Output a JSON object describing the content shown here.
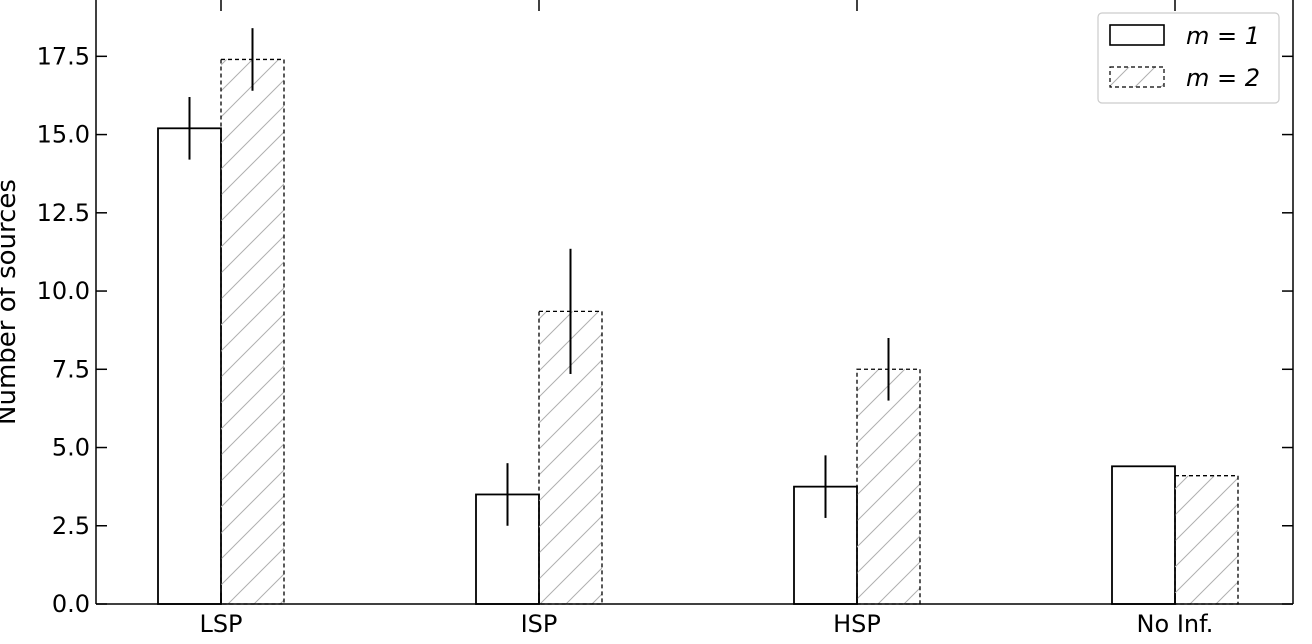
{
  "chart_data": {
    "type": "bar",
    "title": "",
    "xlabel": "",
    "ylabel": "Number of sources",
    "categories": [
      "LSP",
      "ISP",
      "HSP",
      "No Inf."
    ],
    "ylim": [
      0,
      19.3
    ],
    "yticks": [
      "0.0",
      "2.5",
      "5.0",
      "7.5",
      "10.0",
      "12.5",
      "15.0",
      "17.5"
    ],
    "grid": false,
    "legend_position": "top-right",
    "series": [
      {
        "name": "m = 1",
        "legend_label": "m = 1",
        "style": "solid-outline",
        "values": [
          15.2,
          3.5,
          3.75,
          4.4
        ],
        "errors": [
          1.0,
          1.0,
          1.0,
          null
        ]
      },
      {
        "name": "m = 2",
        "legend_label": "m = 2",
        "style": "dashed-hatched",
        "values": [
          17.4,
          9.35,
          7.5,
          4.1
        ],
        "errors": [
          1.0,
          2.0,
          1.0,
          null
        ]
      }
    ]
  },
  "colors": {
    "bar_edge": "#000000",
    "hatch": "#b0b0b0",
    "background": "#ffffff"
  }
}
